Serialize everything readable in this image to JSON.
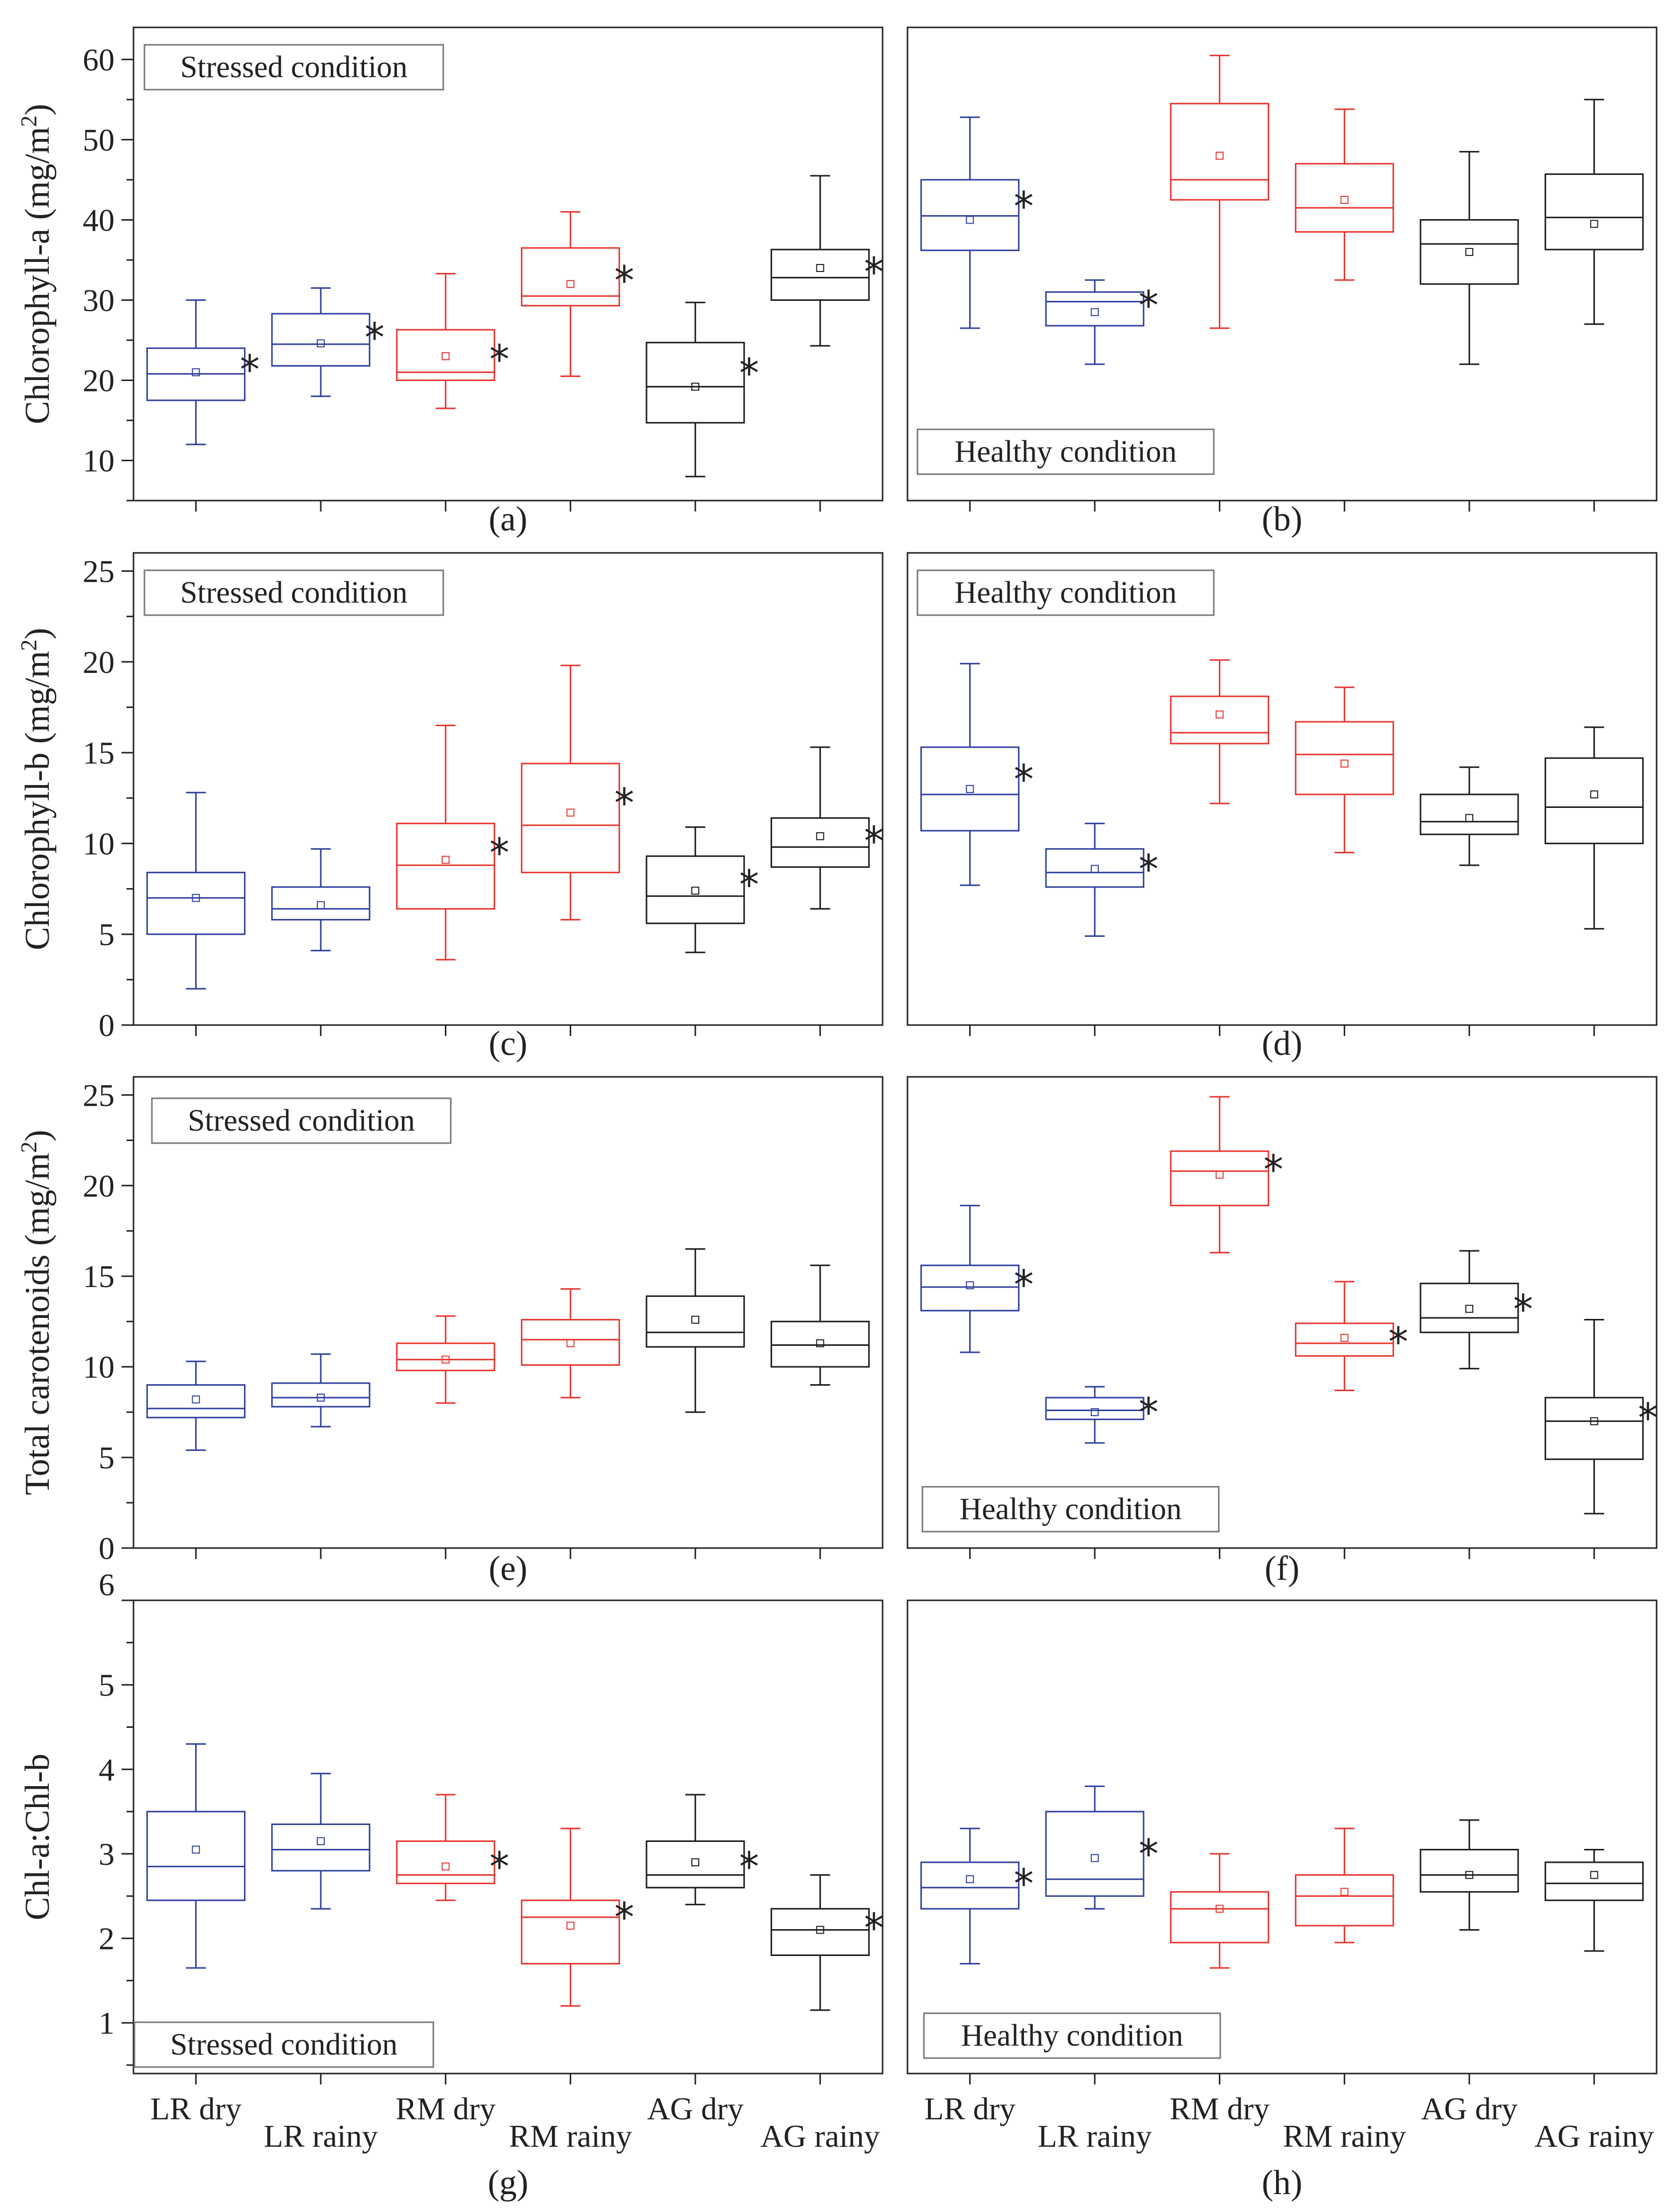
{
  "colors": {
    "LR": "#2e3f9e",
    "RM": "#e8342e",
    "AG": "#1a1a1a"
  },
  "categories": [
    "LR dry",
    "LR rainy",
    "RM dry",
    "RM rainy",
    "AG dry",
    "AG rainy"
  ],
  "chart_data": [
    {
      "type": "box",
      "panel": "(a)",
      "condition": "Stressed condition",
      "ylabel": "Chlorophyll-a (mg/m",
      "ylabel_sup": "2",
      "ylabel_end": ")",
      "ylim": [
        5,
        64
      ],
      "yticks": [
        10,
        20,
        30,
        40,
        50,
        60
      ],
      "boxes": [
        {
          "category": "LR dry",
          "group": "LR",
          "min": 12,
          "q1": 17.5,
          "median": 20.8,
          "q3": 24,
          "max": 30,
          "mean": 21,
          "sig": true
        },
        {
          "category": "LR rainy",
          "group": "LR",
          "min": 18,
          "q1": 21.8,
          "median": 24.5,
          "q3": 28.3,
          "max": 31.5,
          "mean": 24.6,
          "sig": true
        },
        {
          "category": "RM dry",
          "group": "RM",
          "min": 16.5,
          "q1": 20,
          "median": 21,
          "q3": 26.3,
          "max": 33.3,
          "mean": 23,
          "sig": true
        },
        {
          "category": "RM rainy",
          "group": "RM",
          "min": 20.5,
          "q1": 29.3,
          "median": 30.5,
          "q3": 36.5,
          "max": 41,
          "mean": 32,
          "sig": true
        },
        {
          "category": "AG dry",
          "group": "AG",
          "min": 8,
          "q1": 14.7,
          "median": 19.2,
          "q3": 24.7,
          "max": 29.7,
          "mean": 19.2,
          "sig": true
        },
        {
          "category": "AG rainy",
          "group": "AG",
          "min": 24.3,
          "q1": 30,
          "median": 32.8,
          "q3": 36.3,
          "max": 45.5,
          "mean": 34,
          "sig": true
        }
      ]
    },
    {
      "type": "box",
      "panel": "(b)",
      "condition": "Healthy condition",
      "ylim": [
        5,
        64
      ],
      "boxes": [
        {
          "category": "LR dry",
          "group": "LR",
          "min": 26.5,
          "q1": 36.2,
          "median": 40.5,
          "q3": 45,
          "max": 52.8,
          "mean": 40,
          "sig": true
        },
        {
          "category": "LR rainy",
          "group": "LR",
          "min": 22,
          "q1": 26.8,
          "median": 29.8,
          "q3": 31,
          "max": 32.5,
          "mean": 28.5,
          "sig": true
        },
        {
          "category": "RM dry",
          "group": "RM",
          "min": 26.5,
          "q1": 42.5,
          "median": 45,
          "q3": 54.5,
          "max": 60.5,
          "mean": 48,
          "sig": false
        },
        {
          "category": "RM rainy",
          "group": "RM",
          "min": 32.5,
          "q1": 38.5,
          "median": 41.5,
          "q3": 47,
          "max": 53.8,
          "mean": 42.5,
          "sig": false
        },
        {
          "category": "AG dry",
          "group": "AG",
          "min": 22,
          "q1": 32,
          "median": 37,
          "q3": 40,
          "max": 48.5,
          "mean": 36,
          "sig": false
        },
        {
          "category": "AG rainy",
          "group": "AG",
          "min": 27,
          "q1": 36.3,
          "median": 40.3,
          "q3": 45.7,
          "max": 55,
          "mean": 39.5,
          "sig": false
        }
      ]
    },
    {
      "type": "box",
      "panel": "(c)",
      "condition": "Stressed condition",
      "ylabel": "Chlorophyll-b (mg/m",
      "ylabel_sup": "2",
      "ylabel_end": ")",
      "ylim": [
        0,
        26
      ],
      "yticks": [
        0,
        5,
        10,
        15,
        20,
        25
      ],
      "boxes": [
        {
          "category": "LR dry",
          "group": "LR",
          "min": 2,
          "q1": 5,
          "median": 7,
          "q3": 8.4,
          "max": 12.8,
          "mean": 7,
          "sig": false
        },
        {
          "category": "LR rainy",
          "group": "LR",
          "min": 4.1,
          "q1": 5.8,
          "median": 6.4,
          "q3": 7.6,
          "max": 9.7,
          "mean": 6.6,
          "sig": false
        },
        {
          "category": "RM dry",
          "group": "RM",
          "min": 3.6,
          "q1": 6.4,
          "median": 8.8,
          "q3": 11.1,
          "max": 16.5,
          "mean": 9.1,
          "sig": true
        },
        {
          "category": "RM rainy",
          "group": "RM",
          "min": 5.8,
          "q1": 8.4,
          "median": 11,
          "q3": 14.4,
          "max": 19.8,
          "mean": 11.7,
          "sig": true
        },
        {
          "category": "AG dry",
          "group": "AG",
          "min": 4,
          "q1": 5.6,
          "median": 7.1,
          "q3": 9.3,
          "max": 10.9,
          "mean": 7.4,
          "sig": true
        },
        {
          "category": "AG rainy",
          "group": "AG",
          "min": 6.4,
          "q1": 8.7,
          "median": 9.8,
          "q3": 11.4,
          "max": 15.3,
          "mean": 10.4,
          "sig": true
        }
      ]
    },
    {
      "type": "box",
      "panel": "(d)",
      "condition": "Healthy condition",
      "ylim": [
        0,
        26
      ],
      "boxes": [
        {
          "category": "LR dry",
          "group": "LR",
          "min": 7.7,
          "q1": 10.7,
          "median": 12.7,
          "q3": 15.3,
          "max": 19.9,
          "mean": 13,
          "sig": true
        },
        {
          "category": "LR rainy",
          "group": "LR",
          "min": 4.9,
          "q1": 7.6,
          "median": 8.4,
          "q3": 9.7,
          "max": 11.1,
          "mean": 8.6,
          "sig": true
        },
        {
          "category": "RM dry",
          "group": "RM",
          "min": 12.2,
          "q1": 15.5,
          "median": 16.1,
          "q3": 18.1,
          "max": 20.1,
          "mean": 17.1,
          "sig": false
        },
        {
          "category": "RM rainy",
          "group": "RM",
          "min": 9.5,
          "q1": 12.7,
          "median": 14.9,
          "q3": 16.7,
          "max": 18.6,
          "mean": 14.4,
          "sig": false
        },
        {
          "category": "AG dry",
          "group": "AG",
          "min": 8.8,
          "q1": 10.5,
          "median": 11.2,
          "q3": 12.7,
          "max": 14.2,
          "mean": 11.4,
          "sig": false
        },
        {
          "category": "AG rainy",
          "group": "AG",
          "min": 5.3,
          "q1": 10,
          "median": 12,
          "q3": 14.7,
          "max": 16.4,
          "mean": 12.7,
          "sig": false
        }
      ]
    },
    {
      "type": "box",
      "panel": "(e)",
      "condition": "Stressed condition",
      "ylabel": "Total carotenoids (mg/m",
      "ylabel_sup": "2",
      "ylabel_end": ")",
      "ylim": [
        0,
        26
      ],
      "yticks": [
        0,
        5,
        10,
        15,
        20,
        25
      ],
      "boxes": [
        {
          "category": "LR dry",
          "group": "LR",
          "min": 5.4,
          "q1": 7.2,
          "median": 7.7,
          "q3": 9,
          "max": 10.3,
          "mean": 8.2,
          "sig": false
        },
        {
          "category": "LR rainy",
          "group": "LR",
          "min": 6.7,
          "q1": 7.8,
          "median": 8.3,
          "q3": 9.1,
          "max": 10.7,
          "mean": 8.3,
          "sig": false
        },
        {
          "category": "RM dry",
          "group": "RM",
          "min": 8,
          "q1": 9.8,
          "median": 10.4,
          "q3": 11.3,
          "max": 12.8,
          "mean": 10.4,
          "sig": false
        },
        {
          "category": "RM rainy",
          "group": "RM",
          "min": 8.3,
          "q1": 10.1,
          "median": 11.5,
          "q3": 12.6,
          "max": 14.3,
          "mean": 11.3,
          "sig": false
        },
        {
          "category": "AG dry",
          "group": "AG",
          "min": 7.5,
          "q1": 11.1,
          "median": 11.9,
          "q3": 13.9,
          "max": 16.5,
          "mean": 12.6,
          "sig": false
        },
        {
          "category": "AG rainy",
          "group": "AG",
          "min": 9,
          "q1": 10,
          "median": 11.2,
          "q3": 12.5,
          "max": 15.6,
          "mean": 11.3,
          "sig": false
        }
      ]
    },
    {
      "type": "box",
      "panel": "(f)",
      "condition": "Healthy condition",
      "ylim": [
        0,
        26
      ],
      "boxes": [
        {
          "category": "LR dry",
          "group": "LR",
          "min": 10.8,
          "q1": 13.1,
          "median": 14.4,
          "q3": 15.6,
          "max": 18.9,
          "mean": 14.5,
          "sig": true
        },
        {
          "category": "LR rainy",
          "group": "LR",
          "min": 5.8,
          "q1": 7.1,
          "median": 7.6,
          "q3": 8.3,
          "max": 8.9,
          "mean": 7.5,
          "sig": true
        },
        {
          "category": "RM dry",
          "group": "RM",
          "min": 16.3,
          "q1": 18.9,
          "median": 20.8,
          "q3": 21.9,
          "max": 24.9,
          "mean": 20.6,
          "sig": true
        },
        {
          "category": "RM rainy",
          "group": "RM",
          "min": 8.7,
          "q1": 10.6,
          "median": 11.3,
          "q3": 12.4,
          "max": 14.7,
          "mean": 11.6,
          "sig": true
        },
        {
          "category": "AG dry",
          "group": "AG",
          "min": 9.9,
          "q1": 11.9,
          "median": 12.7,
          "q3": 14.6,
          "max": 16.4,
          "mean": 13.2,
          "sig": true
        },
        {
          "category": "AG rainy",
          "group": "AG",
          "min": 1.9,
          "q1": 4.9,
          "median": 7,
          "q3": 8.3,
          "max": 12.6,
          "mean": 7,
          "sig": true
        }
      ]
    },
    {
      "type": "box",
      "panel": "(g)",
      "condition": "Stressed condition",
      "ylabel": "Chl-a:Chl-b",
      "ylim": [
        0.4,
        6.0
      ],
      "yticks": [
        1,
        2,
        3,
        4,
        5
      ],
      "top_label": "6",
      "boxes": [
        {
          "category": "LR dry",
          "group": "LR",
          "min": 1.65,
          "q1": 2.45,
          "median": 2.85,
          "q3": 3.5,
          "max": 4.3,
          "mean": 3.05,
          "sig": false
        },
        {
          "category": "LR rainy",
          "group": "LR",
          "min": 2.35,
          "q1": 2.8,
          "median": 3.05,
          "q3": 3.35,
          "max": 3.95,
          "mean": 3.15,
          "sig": false
        },
        {
          "category": "RM dry",
          "group": "RM",
          "min": 2.45,
          "q1": 2.65,
          "median": 2.75,
          "q3": 3.15,
          "max": 3.7,
          "mean": 2.85,
          "sig": true
        },
        {
          "category": "RM rainy",
          "group": "RM",
          "min": 1.2,
          "q1": 1.7,
          "median": 2.25,
          "q3": 2.45,
          "max": 3.3,
          "mean": 2.15,
          "sig": true
        },
        {
          "category": "AG dry",
          "group": "AG",
          "min": 2.4,
          "q1": 2.6,
          "median": 2.75,
          "q3": 3.15,
          "max": 3.7,
          "mean": 2.9,
          "sig": true
        },
        {
          "category": "AG rainy",
          "group": "AG",
          "min": 1.15,
          "q1": 1.8,
          "median": 2.1,
          "q3": 2.35,
          "max": 2.75,
          "mean": 2.1,
          "sig": true
        }
      ]
    },
    {
      "type": "box",
      "panel": "(h)",
      "condition": "Healthy condition",
      "ylim": [
        0.4,
        6.0
      ],
      "boxes": [
        {
          "category": "LR dry",
          "group": "LR",
          "min": 1.7,
          "q1": 2.35,
          "median": 2.6,
          "q3": 2.9,
          "max": 3.3,
          "mean": 2.7,
          "sig": true
        },
        {
          "category": "LR rainy",
          "group": "LR",
          "min": 2.35,
          "q1": 2.5,
          "median": 2.7,
          "q3": 3.5,
          "max": 3.8,
          "mean": 2.95,
          "sig": true
        },
        {
          "category": "RM dry",
          "group": "RM",
          "min": 1.65,
          "q1": 1.95,
          "median": 2.35,
          "q3": 2.55,
          "max": 3.0,
          "mean": 2.35,
          "sig": false
        },
        {
          "category": "RM rainy",
          "group": "RM",
          "min": 1.95,
          "q1": 2.15,
          "median": 2.5,
          "q3": 2.75,
          "max": 3.3,
          "mean": 2.55,
          "sig": false
        },
        {
          "category": "AG dry",
          "group": "AG",
          "min": 2.1,
          "q1": 2.55,
          "median": 2.75,
          "q3": 3.05,
          "max": 3.4,
          "mean": 2.75,
          "sig": false
        },
        {
          "category": "AG rainy",
          "group": "AG",
          "min": 1.85,
          "q1": 2.45,
          "median": 2.65,
          "q3": 2.9,
          "max": 3.05,
          "mean": 2.75,
          "sig": false
        }
      ]
    }
  ]
}
